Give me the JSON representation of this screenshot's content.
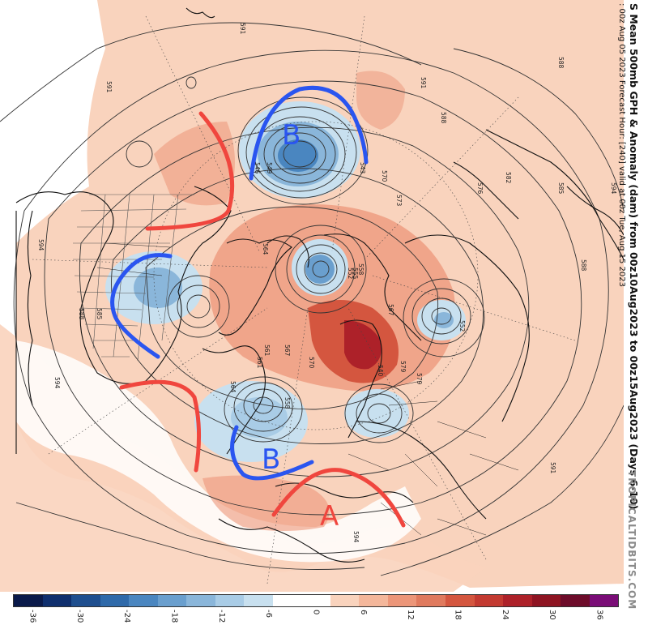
{
  "title": "S Mean 500mb GPH & Anomaly (dam) from 00z10Aug2023 to 00z15Aug2023 (Days 6-10)",
  "subtitle": ": 00z Aug 05 2023   Forecast Hour: [240]   valid at 00z Tue, Aug 15 2023",
  "brand": "TROPICALTIDBITS.COM",
  "colorbar": {
    "colors": [
      "#0a1a4a",
      "#0f2f6e",
      "#1f4f8f",
      "#2f6aaa",
      "#4a86c0",
      "#6a9fce",
      "#8ab6da",
      "#a9cce6",
      "#c8e0ef",
      "#ffffff",
      "#ffffff",
      "#f9d3bd",
      "#f4b79b",
      "#ec9679",
      "#e07a5e",
      "#d4563f",
      "#c33a31",
      "#ad2129",
      "#8e1422",
      "#6d0c2a",
      "#7a0d77"
    ],
    "ticks": [
      "-36",
      "-30",
      "-24",
      "-18",
      "-12",
      "-6",
      "0",
      "6",
      "12",
      "18",
      "24",
      "30",
      "36"
    ]
  },
  "annotations": {
    "trough_1": "B",
    "trough_2": "B",
    "ridge_1": "A"
  },
  "contour_labels": [
    "591",
    "591",
    "588",
    "588",
    "585",
    "582",
    "576",
    "573",
    "570",
    "567",
    "564",
    "561",
    "558",
    "555",
    "552",
    "549",
    "546",
    "543",
    "540",
    "579",
    "594",
    "594",
    "594",
    "591",
    "588",
    "585",
    "570",
    "567",
    "564",
    "561",
    "558",
    "579",
    "552",
    "594",
    "591",
    "588"
  ],
  "colors": {
    "warm_anom": "#f9d3bd",
    "warm_mid": "#ec9679",
    "warm_strong": "#c33a31",
    "cold_anom": "#a9cce6",
    "cold_mid": "#6a9fce",
    "cold_strong": "#3f7ab8",
    "marker_red": "#f0463e",
    "marker_blue": "#2a55f0"
  }
}
